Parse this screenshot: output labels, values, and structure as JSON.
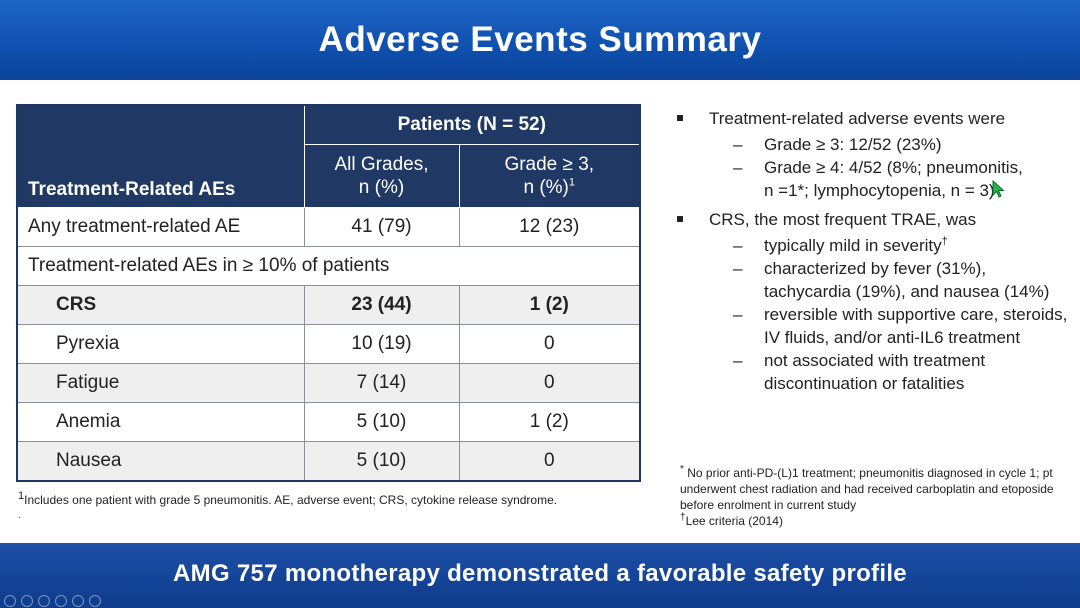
{
  "header": {
    "title": "Adverse Events Summary"
  },
  "table": {
    "corner_label": "Treatment-Related AEs",
    "group_header": "Patients (N = 52)",
    "col_all_grades_line1": "All Grades,",
    "col_all_grades_line2": "n (%)",
    "col_grade3_line1": "Grade ≥ 3,",
    "col_grade3_line2": "n (%)",
    "col_grade3_sup": "1",
    "any_row": {
      "label": "Any treatment-related AE",
      "all": "41 (79)",
      "g3": "12 (23)"
    },
    "section_label": "Treatment-related AEs in ≥ 10% of patients",
    "rows": [
      {
        "label": "CRS",
        "all": "23 (44)",
        "g3": "1 (2)"
      },
      {
        "label": "Pyrexia",
        "all": "10 (19)",
        "g3": "0"
      },
      {
        "label": "Fatigue",
        "all": "7 (14)",
        "g3": "0"
      },
      {
        "label": "Anemia",
        "all": "5 (10)",
        "g3": "1 (2)"
      },
      {
        "label": "Nausea",
        "all": "5 (10)",
        "g3": "0"
      }
    ]
  },
  "footnote_left": {
    "sup": "1",
    "text": "Includes one patient with grade 5 pneumonitis. AE, adverse event; CRS, cytokine release syndrome.",
    "trailing": "."
  },
  "bullets": {
    "b1": "Treatment-related adverse events were",
    "b1_items": [
      "Grade ≥ 3: 12/52 (23%)",
      "Grade ≥ 4: 4/52 (8%; pneumonitis,",
      "n =1*; lymphocytopenia, n = 3)"
    ],
    "b2": "CRS, the most frequent TRAE, was",
    "b2_items": [
      "typically mild in severity",
      "characterized by fever (31%), tachycardia (19%), and nausea (14%)",
      "reversible with supportive care, steroids, IV fluids, and/or anti-IL6 treatment",
      "not associated with treatment discontinuation or fatalities"
    ],
    "dagger": "†"
  },
  "footnote_right": {
    "star": "*",
    "line1": "No prior anti-PD-(L)1 treatment; pneumonitis diagnosed in cycle 1; pt underwent chest radiation and had received carboplatin and etoposide before enrolment in current study",
    "dagger": "†",
    "line2": "Lee criteria (2014)"
  },
  "banner": {
    "text": "AMG 757 monotherapy demonstrated a favorable safety profile"
  },
  "colors": {
    "header_blue": "#0f4fae",
    "table_header": "#1f3864",
    "banner_blue": "#0f3c8c",
    "cursor": "#1fb84a"
  }
}
